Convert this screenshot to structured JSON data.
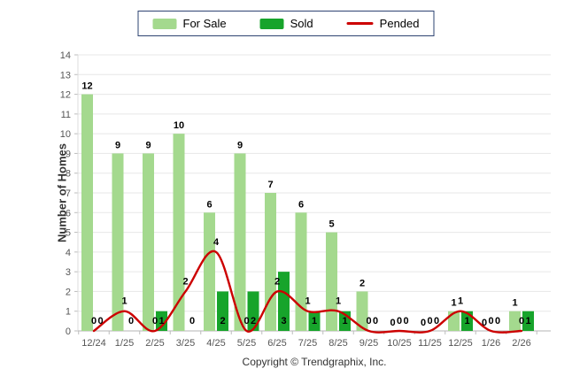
{
  "legend": {
    "border_color": "#2e4372"
  },
  "chart_data": {
    "type": "bar",
    "title": "",
    "categories": [
      "12/24",
      "1/25",
      "2/25",
      "3/25",
      "4/25",
      "5/25",
      "6/25",
      "7/25",
      "8/25",
      "9/25",
      "10/25",
      "11/25",
      "12/25",
      "1/26",
      "2/26"
    ],
    "series": [
      {
        "name": "For Sale",
        "type": "bar",
        "color": "#a4d98e",
        "values": [
          12,
          9,
          9,
          10,
          6,
          9,
          7,
          6,
          5,
          2,
          0,
          0,
          1,
          0,
          1
        ]
      },
      {
        "name": "Sold",
        "type": "bar",
        "color": "#17a42b",
        "values": [
          0,
          0,
          1,
          0,
          2,
          2,
          3,
          1,
          1,
          0,
          0,
          0,
          1,
          0,
          1
        ]
      },
      {
        "name": "Pended",
        "type": "line",
        "color": "#cc0000",
        "values": [
          0,
          1,
          0,
          2,
          4,
          0,
          2,
          1,
          1,
          0,
          0,
          0,
          1,
          0,
          0
        ]
      }
    ],
    "xlabel": "",
    "ylabel": "Number of Homes",
    "ylim": [
      0,
      14
    ],
    "y_tick_step": 1,
    "grid": true,
    "legend_position": "top-center",
    "grid_color": "#e7e7e7",
    "axis_color": "#b5b5b5"
  },
  "footer": {
    "copyright": "Copyright © Trendgraphix, Inc."
  }
}
